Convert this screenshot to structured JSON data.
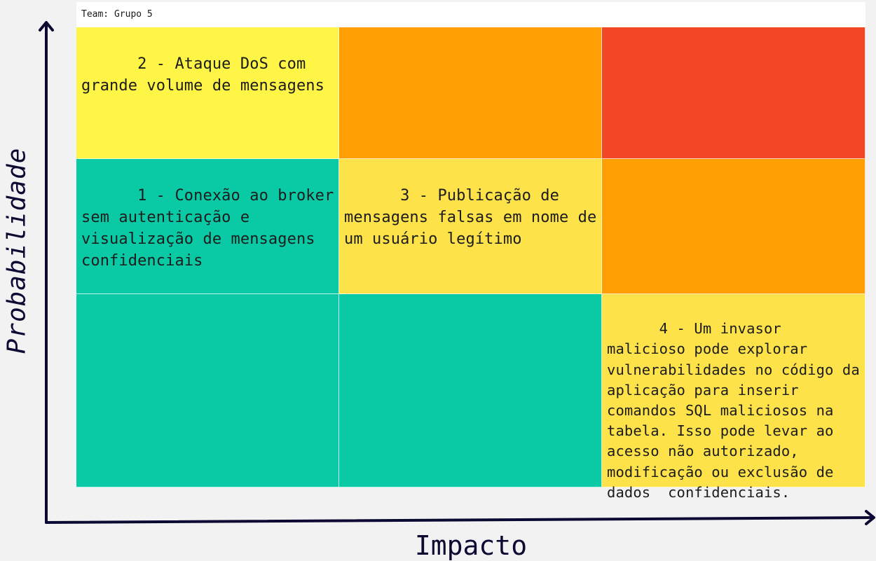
{
  "team": "Team: Grupo 5",
  "axes": {
    "y_label": "Probabilidade",
    "x_label": "Impacto",
    "color": "#0c0a33"
  },
  "matrix": {
    "rows": [
      {
        "cells": [
          {
            "color": "#fff546",
            "text": "2 - Ataque DoS com grande volume de mensagens"
          },
          {
            "color": "#ff9f04",
            "text": ""
          },
          {
            "color": "#f24727",
            "text": ""
          }
        ]
      },
      {
        "cells": [
          {
            "color": "#0acaa6",
            "text": "1 - Conexão ao broker sem autenticação e visualização de mensagens confidenciais"
          },
          {
            "color": "#fde24a",
            "text": "3 - Publicação de mensagens falsas em nome de um usuário legítimo"
          },
          {
            "color": "#ff9f04",
            "text": ""
          }
        ]
      },
      {
        "cells": [
          {
            "color": "#0acaa6",
            "text": ""
          },
          {
            "color": "#0acaa6",
            "text": ""
          },
          {
            "color": "#fde24a",
            "text": "4 - Um invasor malicioso pode explorar vulnerabilidades no código da aplicação para inserir comandos SQL maliciosos na tabela. Isso pode levar ao acesso não autorizado, modificação ou exclusão de dados  confidenciais."
          }
        ]
      }
    ]
  }
}
